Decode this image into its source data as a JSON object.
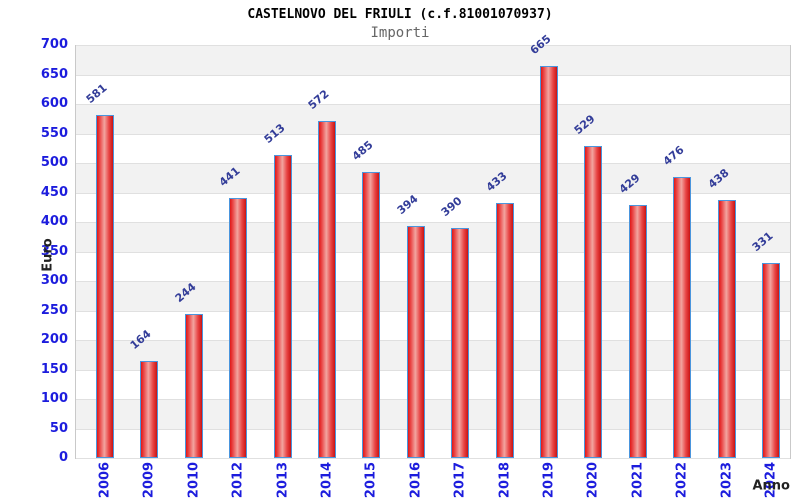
{
  "chart_data": {
    "type": "bar",
    "title": "CASTELNOVO DEL FRIULI (c.f.81001070937)",
    "subtitle": "Importi",
    "xlabel": "Anno",
    "ylabel": "Euro",
    "categories": [
      "2006",
      "2009",
      "2010",
      "2012",
      "2013",
      "2014",
      "2015",
      "2016",
      "2017",
      "2018",
      "2019",
      "2020",
      "2021",
      "2022",
      "2023",
      "2024"
    ],
    "values": [
      581,
      164,
      244,
      441,
      513,
      572,
      485,
      394,
      390,
      433,
      665,
      529,
      429,
      476,
      438,
      331
    ],
    "ylim": [
      0,
      700
    ],
    "ytick_step": 50,
    "grid": "horizontal-bands-alternating",
    "legend": "none",
    "colors": {
      "bar_fill_edge": "#e01717",
      "bar_fill_center": "#f2a5a0",
      "bar_border": "#4a95dd",
      "tick_label": "#1c1cdd",
      "value_label": "#333d99",
      "band_gray": "#f2f2f2",
      "gridline": "#e0e0e0",
      "plot_border": "#c9c9c9",
      "title_color": "#000000",
      "subtitle_color": "#666666",
      "axis_title_color": "#222222",
      "background": "#ffffff"
    }
  }
}
